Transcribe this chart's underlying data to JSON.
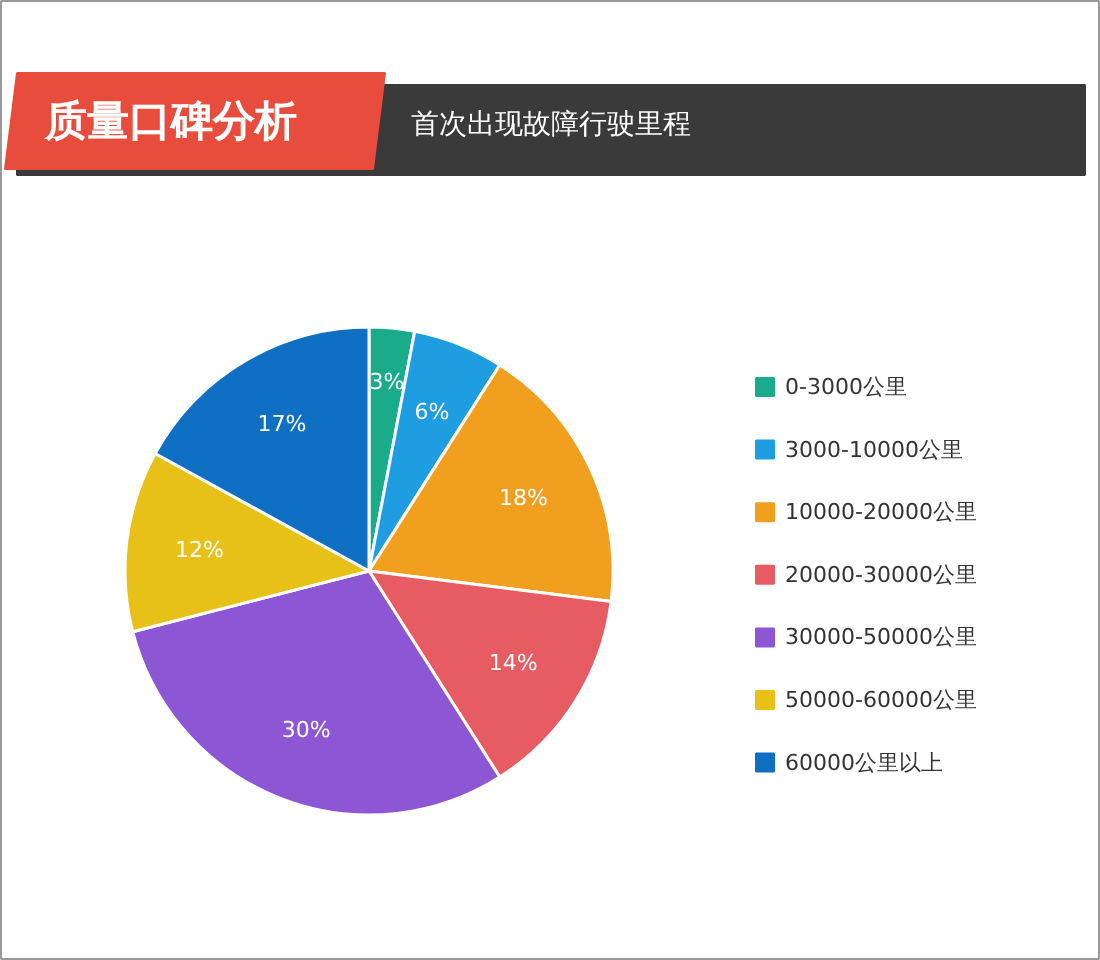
{
  "chart_data": {
    "type": "pie",
    "title": "质量口碑分析",
    "subtitle": "首次出现故障行驶里程",
    "categories": [
      "0-3000公里",
      "3000-10000公里",
      "10000-20000公里",
      "20000-30000公里",
      "30000-50000公里",
      "50000-60000公里",
      "60000公里以上"
    ],
    "values": [
      3,
      6,
      18,
      14,
      30,
      12,
      17
    ],
    "value_labels": [
      "3%",
      "6%",
      "18%",
      "14%",
      "30%",
      "12%",
      "17%"
    ],
    "colors": [
      "#1aab8a",
      "#1e9ee0",
      "#f09f1e",
      "#e65c62",
      "#8c56d4",
      "#e8c118",
      "#0f6fc2"
    ],
    "legend": "right"
  }
}
